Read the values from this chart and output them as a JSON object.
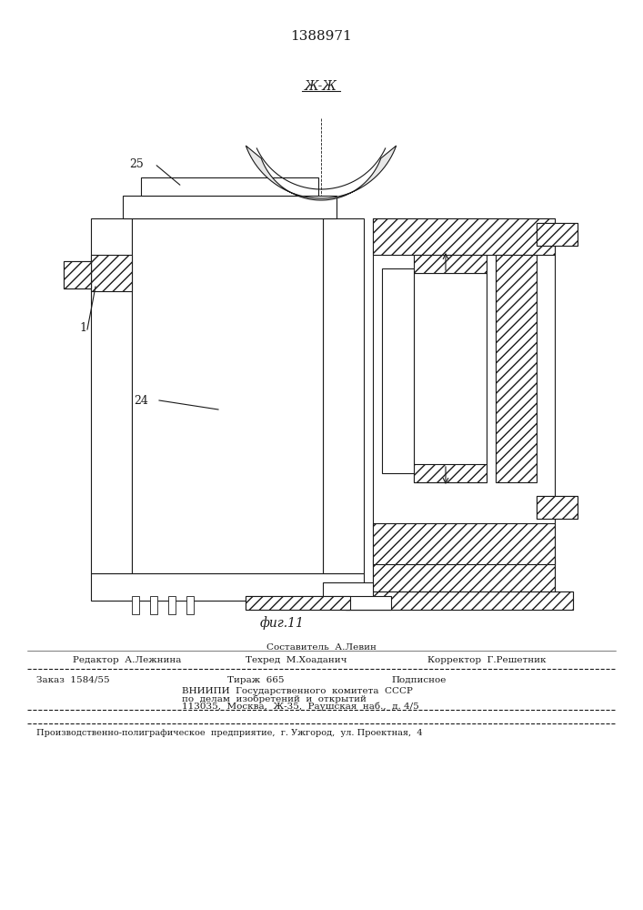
{
  "patent_number": "1388971",
  "fig_label": "фиг.11",
  "section_label": "Ж-Ж",
  "label_25": "25",
  "label_1": "1",
  "label_24": "24",
  "footer_line1_center": "Составитель  А.Левин",
  "footer_line2_left": "Редактор  А.Лежнина",
  "footer_line2_center": "Техред  М.Хоаданич",
  "footer_line2_right": "Корректор  Г.Решетник",
  "footer_line3_left": "Заказ  1584/55",
  "footer_line3_center": "Тираж  665",
  "footer_line3_right": "Подписное",
  "footer_line4": "ВНИИПИ  Государственного  комитета  СССР",
  "footer_line5": "по  делам  изобретений  и  открытий",
  "footer_line6": "113035,  Москва,  Ж-35,  Раушская  наб.,  д. 4/5",
  "footer_bottom": "Производственно-полиграфическое  предприятие,  г. Ужгород,  ул. Проектная,  4",
  "bg_color": "#f5f5f0",
  "line_color": "#1a1a1a",
  "hatch_color": "#1a1a1a"
}
